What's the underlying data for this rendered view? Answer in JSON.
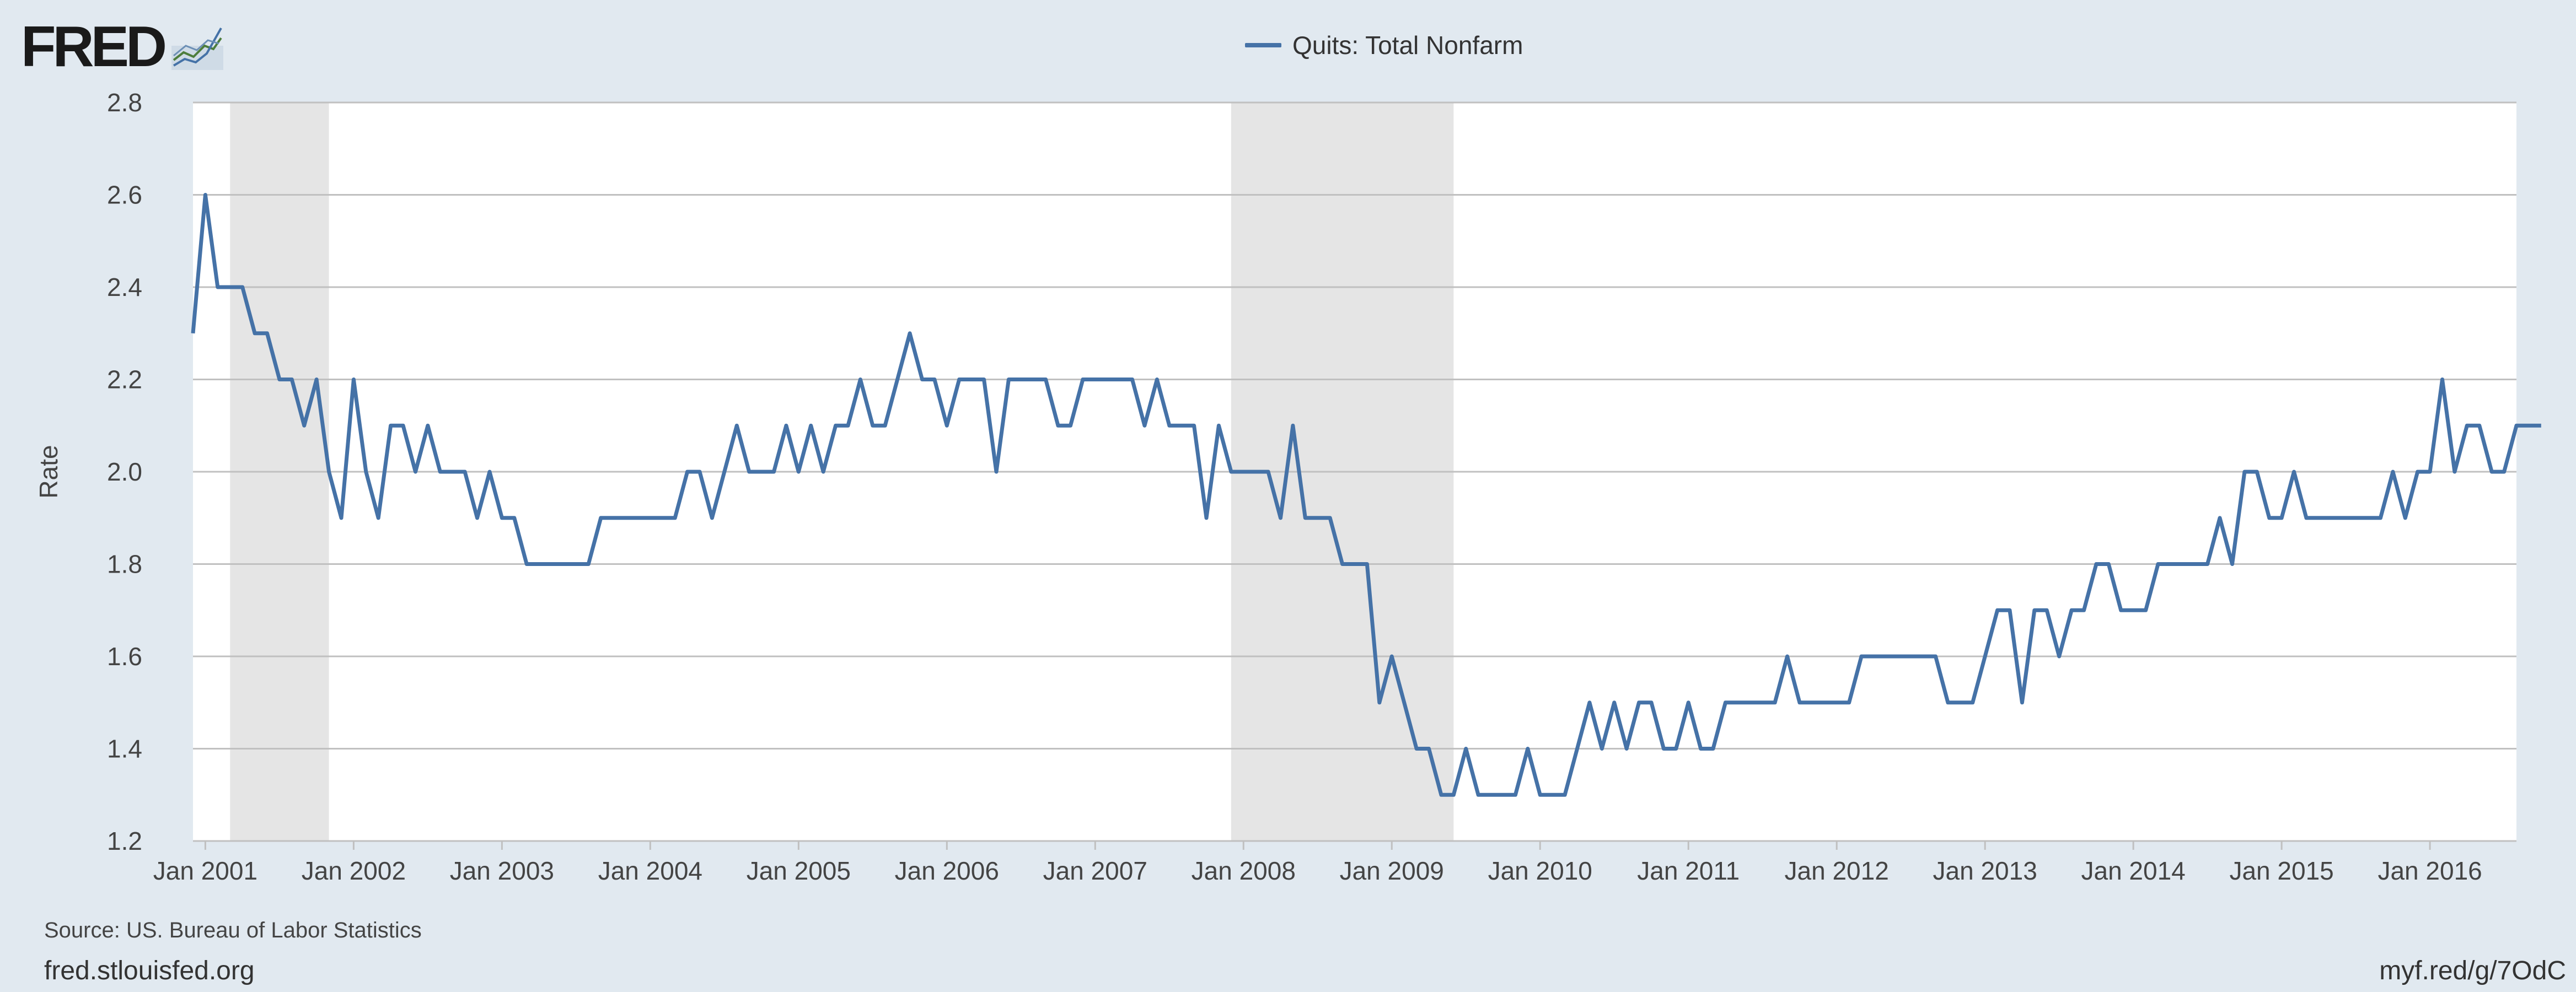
{
  "logo": {
    "text": "FRED",
    "icon": "fred-line-graph-icon"
  },
  "legend": {
    "label": "Quits: Total Nonfarm",
    "color": "#4572a7"
  },
  "footer": {
    "source": "Source: US. Bureau of Labor Statistics",
    "site": "fred.stlouisfed.org",
    "short_url": "myf.red/g/7OdC"
  },
  "colors": {
    "background": "#e1e9f0",
    "plot": "#ffffff",
    "line": "#4572a7",
    "recession": "#e5e5e5",
    "grid": "#c0c0c0"
  },
  "chart_data": {
    "type": "line",
    "title": "",
    "xlabel": "",
    "ylabel": "Rate",
    "ylim": [
      1.2,
      2.8
    ],
    "yticks": [
      "1.2",
      "1.4",
      "1.6",
      "1.8",
      "2.0",
      "2.2",
      "2.4",
      "2.6",
      "2.8"
    ],
    "xticks": [
      "Jan 2001",
      "Jan 2002",
      "Jan 2003",
      "Jan 2004",
      "Jan 2005",
      "Jan 2006",
      "Jan 2007",
      "Jan 2008",
      "Jan 2009",
      "Jan 2010",
      "Jan 2011",
      "Jan 2012",
      "Jan 2013",
      "Jan 2014",
      "Jan 2015",
      "Jan 2016"
    ],
    "x_start": "Dec 2000",
    "x_end": "Aug 2016",
    "grid": true,
    "legend_position": "top-center",
    "recessions": [
      [
        "Mar 2001",
        "Nov 2001"
      ],
      [
        "Dec 2007",
        "Jun 2009"
      ]
    ],
    "series": [
      {
        "name": "Quits: Total Nonfarm",
        "values": [
          2.3,
          2.6,
          2.4,
          2.4,
          2.4,
          2.3,
          2.3,
          2.2,
          2.2,
          2.1,
          2.2,
          2.0,
          1.9,
          2.2,
          2.0,
          1.9,
          2.1,
          2.1,
          2.0,
          2.1,
          2.0,
          2.0,
          2.0,
          1.9,
          2.0,
          1.9,
          1.9,
          1.8,
          1.8,
          1.8,
          1.8,
          1.8,
          1.8,
          1.9,
          1.9,
          1.9,
          1.9,
          1.9,
          1.9,
          1.9,
          2.0,
          2.0,
          1.9,
          2.0,
          2.1,
          2.0,
          2.0,
          2.0,
          2.1,
          2.0,
          2.1,
          2.0,
          2.1,
          2.1,
          2.2,
          2.1,
          2.1,
          2.2,
          2.3,
          2.2,
          2.2,
          2.1,
          2.2,
          2.2,
          2.2,
          2.0,
          2.2,
          2.2,
          2.2,
          2.2,
          2.1,
          2.1,
          2.2,
          2.2,
          2.2,
          2.2,
          2.2,
          2.1,
          2.2,
          2.1,
          2.1,
          2.1,
          1.9,
          2.1,
          2.0,
          2.0,
          2.0,
          2.0,
          1.9,
          2.1,
          1.9,
          1.9,
          1.9,
          1.8,
          1.8,
          1.8,
          1.5,
          1.6,
          1.5,
          1.4,
          1.4,
          1.3,
          1.3,
          1.4,
          1.3,
          1.3,
          1.3,
          1.3,
          1.4,
          1.3,
          1.3,
          1.3,
          1.4,
          1.5,
          1.4,
          1.5,
          1.4,
          1.5,
          1.5,
          1.4,
          1.4,
          1.5,
          1.4,
          1.4,
          1.5,
          1.5,
          1.5,
          1.5,
          1.5,
          1.6,
          1.5,
          1.5,
          1.5,
          1.5,
          1.5,
          1.6,
          1.6,
          1.6,
          1.6,
          1.6,
          1.6,
          1.6,
          1.5,
          1.5,
          1.5,
          1.6,
          1.7,
          1.7,
          1.5,
          1.7,
          1.7,
          1.6,
          1.7,
          1.7,
          1.8,
          1.8,
          1.7,
          1.7,
          1.7,
          1.8,
          1.8,
          1.8,
          1.8,
          1.8,
          1.9,
          1.8,
          2.0,
          2.0,
          1.9,
          1.9,
          2.0,
          1.9,
          1.9,
          1.9,
          1.9,
          1.9,
          1.9,
          1.9,
          2.0,
          1.9,
          2.0,
          2.0,
          2.2,
          2.0,
          2.1,
          2.1,
          2.0,
          2.0,
          2.1,
          2.1,
          2.1
        ]
      }
    ]
  }
}
